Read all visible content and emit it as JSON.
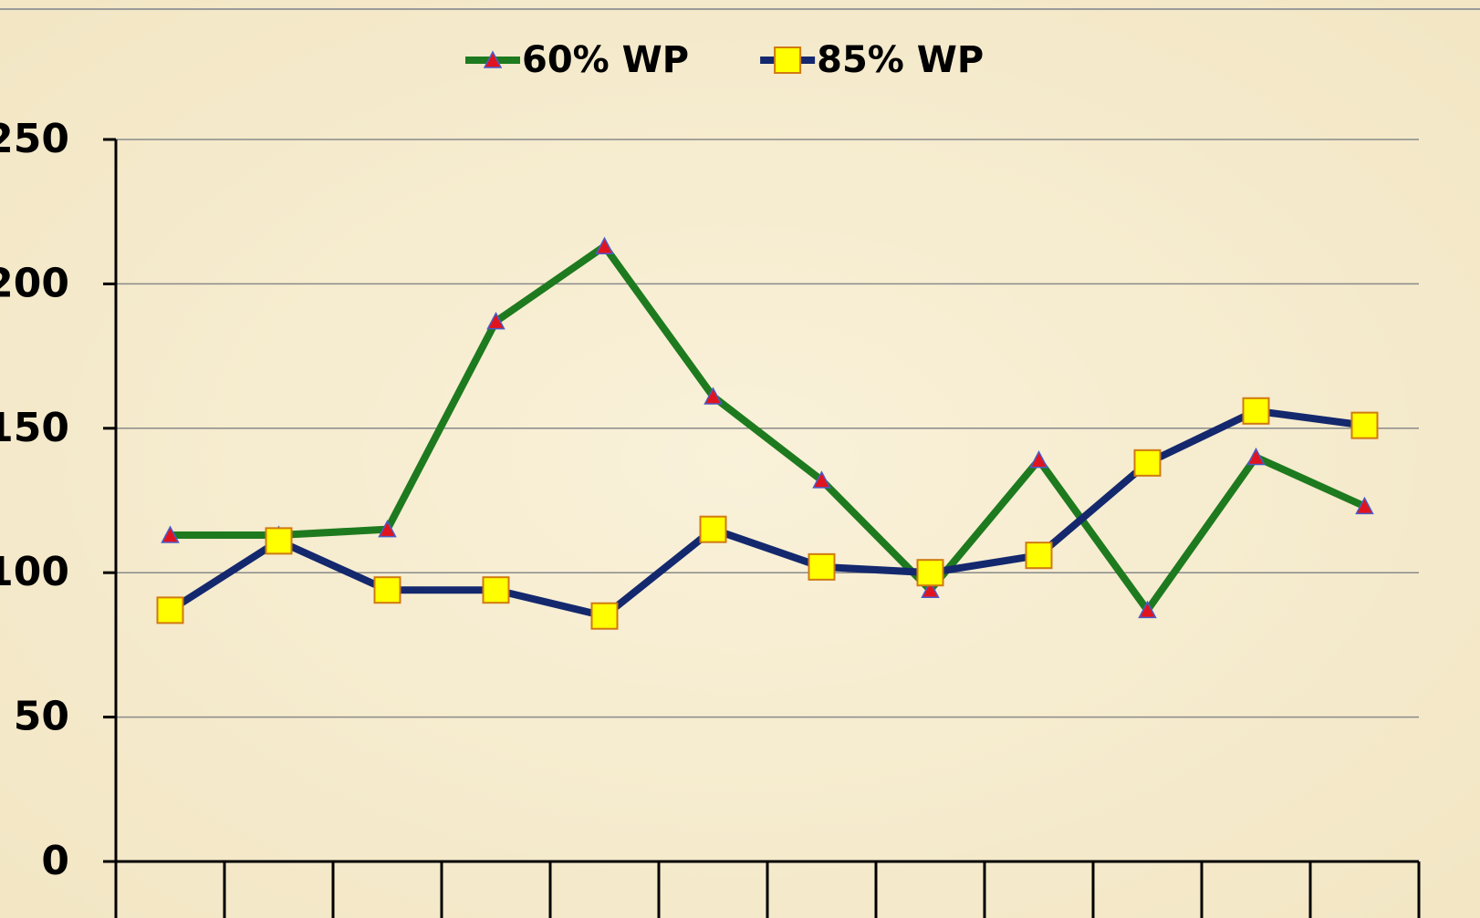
{
  "chart_data": {
    "type": "line",
    "categories": [
      null,
      null,
      null,
      null,
      null,
      null,
      null,
      null,
      null,
      null,
      null,
      null
    ],
    "series": [
      {
        "name": "60% WP",
        "color": "#1e7a1e",
        "marker": "triangle",
        "marker_color": "#e0141e",
        "values": [
          113,
          113,
          115,
          187,
          213,
          161,
          132,
          94,
          139,
          87,
          140,
          123
        ]
      },
      {
        "name": "85% WP",
        "color": "#14286e",
        "marker": "square",
        "marker_color": "#ffff00",
        "values": [
          87,
          111,
          94,
          94,
          85,
          115,
          102,
          100,
          106,
          138,
          156,
          151
        ]
      }
    ],
    "ylim": [
      0,
      250
    ],
    "yticks": [
      0,
      50,
      100,
      150,
      200,
      250
    ],
    "grid": true,
    "legend": "top"
  }
}
